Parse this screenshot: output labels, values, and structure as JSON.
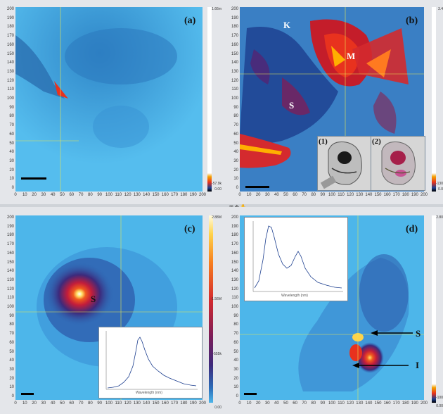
{
  "panels": {
    "a": {
      "label": "(a)",
      "cbar_top": "1.66m",
      "cbar_mid": "-57.9k",
      "cbar_bot": "0.00"
    },
    "b": {
      "label": "(b)",
      "markers": {
        "K": "K",
        "M": "M",
        "S": "S"
      },
      "cbar_top": "3.4",
      "cbar_mid": "-130",
      "cbar_bot": "0.0",
      "insets": {
        "one": "(1)",
        "two": "(2)"
      }
    },
    "c": {
      "label": "(c)",
      "marker": "S",
      "cbar_top": "2.88M",
      "cbar_mid": "-1.56M",
      "cbar_low": "-555k",
      "cbar_bot": "0.00",
      "inset_xlabel": "Wavelength (nm)"
    },
    "d": {
      "label": "(d)",
      "marker_s": "S",
      "marker_i": "I",
      "cbar_top": "2.80",
      "cbar_mid": "-100",
      "cbar_bot": "0.00",
      "inset_xlabel": "Wavelength (nm)"
    }
  },
  "axis": {
    "y_ticks": [
      "200",
      "190",
      "180",
      "170",
      "160",
      "150",
      "140",
      "130",
      "120",
      "110",
      "100",
      "90",
      "80",
      "70",
      "60",
      "50",
      "40",
      "30",
      "20",
      "10",
      "0"
    ],
    "x_ticks": [
      "0",
      "10",
      "20",
      "30",
      "40",
      "50",
      "60",
      "70",
      "80",
      "90",
      "100",
      "110",
      "120",
      "130",
      "140",
      "150",
      "160",
      "170",
      "180",
      "190",
      "200"
    ]
  },
  "colors": {
    "bg_blue": "#4db6ea",
    "deep_blue": "#1d3f8f",
    "hot": "#e8321e",
    "hot2": "#ffb000"
  }
}
